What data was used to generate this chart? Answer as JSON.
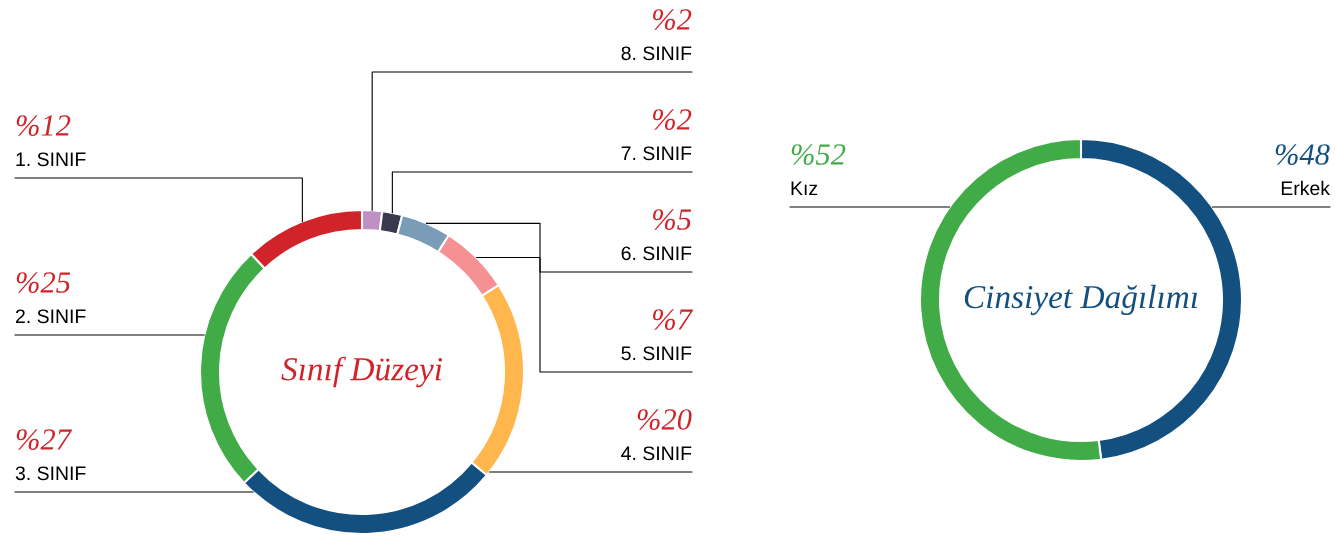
{
  "chart_data": [
    {
      "type": "donut",
      "title": "Sınıf Düzeyi",
      "categories": [
        "8. SINIF",
        "7. SINIF",
        "6. SINIF",
        "5. SINIF",
        "4. SINIF",
        "3. SINIF",
        "2. SINIF",
        "1. SINIF"
      ],
      "values": [
        2,
        2,
        5,
        7,
        20,
        27,
        25,
        12
      ],
      "colors": [
        "#c08fc3",
        "#3a3a4f",
        "#7b9cb6",
        "#f59093",
        "#ffb74d",
        "#134f7f",
        "#41ab48",
        "#d0232a"
      ],
      "value_labels": [
        "%2",
        "%2",
        "%5",
        "%7",
        "%20",
        "%27",
        "%25",
        "%12"
      ],
      "legend": false
    },
    {
      "type": "donut",
      "title": "Cinsiyet Dağılımı",
      "categories": [
        "Erkek",
        "Kız"
      ],
      "values": [
        48,
        52
      ],
      "colors": [
        "#134f7f",
        "#41ab48"
      ],
      "value_labels": [
        "%48",
        "%52"
      ],
      "legend": false
    }
  ]
}
